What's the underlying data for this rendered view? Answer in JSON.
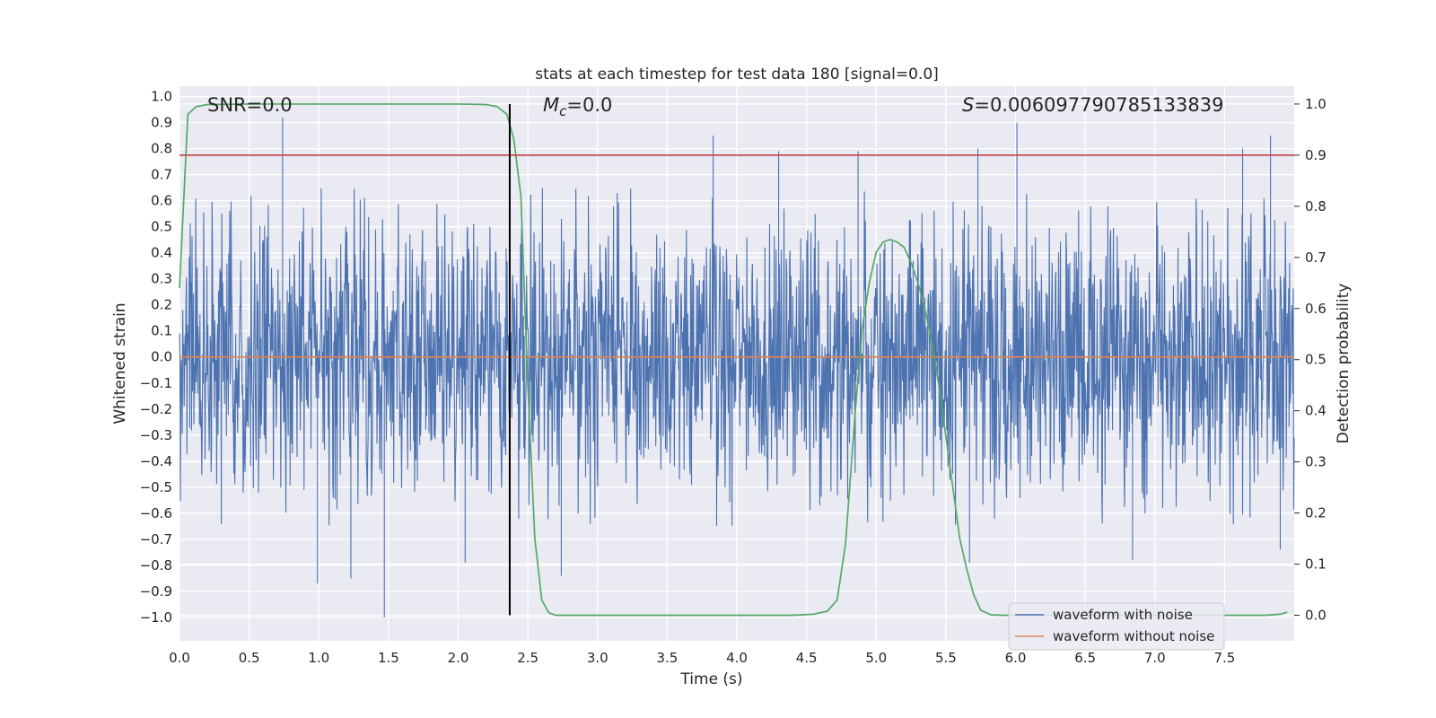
{
  "chart_data": {
    "type": "line",
    "title": "stats at each timestep for test data 180 [signal=0.0]",
    "xlabel": "Time (s)",
    "ylabel": "Whitened strain",
    "y2label": "Detection probability",
    "xlim": [
      0.0,
      8.0
    ],
    "ylim": [
      -1.09,
      1.04
    ],
    "y2lim": [
      -0.05,
      1.035
    ],
    "xticks": [
      "0.0",
      "0.5",
      "1.0",
      "1.5",
      "2.0",
      "2.5",
      "3.0",
      "3.5",
      "4.0",
      "4.5",
      "5.0",
      "5.5",
      "6.0",
      "6.5",
      "7.0",
      "7.5"
    ],
    "yticks": [
      "1.0",
      "0.9",
      "0.8",
      "0.7",
      "0.6",
      "0.5",
      "0.4",
      "0.3",
      "0.2",
      "0.1",
      "0.0",
      "−0.1",
      "−0.2",
      "−0.3",
      "−0.4",
      "−0.5",
      "−0.6",
      "−0.7",
      "−0.8",
      "−0.9",
      "−1.0"
    ],
    "y2ticks": [
      "1.0",
      "0.9",
      "0.8",
      "0.7",
      "0.6",
      "0.5",
      "0.4",
      "0.3",
      "0.2",
      "0.1",
      "0.0"
    ],
    "grid": true,
    "legend_position": "bottom-right",
    "annotations": {
      "snr": "SNR=0.0",
      "mc_symbol": "M",
      "mc_sub": "c",
      "mc_value": "=0.0",
      "s_symbol": "S",
      "s_value": "=0.006097790785133839"
    },
    "series": [
      {
        "name": "waveform with noise",
        "color": "#4c72b0",
        "axis": "left",
        "kind": "noise",
        "envelope_pos": 0.45,
        "envelope_neg": -0.5,
        "peaks": [
          {
            "x": 0.74,
            "y": 0.92
          },
          {
            "x": 3.83,
            "y": 0.85
          },
          {
            "x": 4.3,
            "y": 0.79
          },
          {
            "x": 4.87,
            "y": 0.79
          },
          {
            "x": 6.01,
            "y": 0.9
          },
          {
            "x": 7.83,
            "y": 0.85
          },
          {
            "x": 7.63,
            "y": 0.8
          },
          {
            "x": 5.73,
            "y": 0.8
          },
          {
            "x": 1.47,
            "y": -1.0
          },
          {
            "x": 0.99,
            "y": -0.87
          },
          {
            "x": 1.23,
            "y": -0.85
          },
          {
            "x": 2.74,
            "y": -0.84
          },
          {
            "x": 2.05,
            "y": -0.79
          },
          {
            "x": 5.67,
            "y": -0.79
          },
          {
            "x": 6.84,
            "y": -0.78
          },
          {
            "x": 7.9,
            "y": -0.74
          }
        ]
      },
      {
        "name": "waveform without noise",
        "color": "#dd8452",
        "axis": "left",
        "x": [
          0.0,
          8.0
        ],
        "y": [
          0.0,
          0.0
        ]
      },
      {
        "name": "",
        "color": "#55a868",
        "axis": "right",
        "x": [
          0.0,
          0.06,
          0.12,
          0.2,
          0.5,
          1.0,
          1.5,
          2.0,
          2.2,
          2.28,
          2.35,
          2.4,
          2.45,
          2.5,
          2.55,
          2.6,
          2.65,
          2.7,
          3.0,
          3.5,
          4.0,
          4.4,
          4.55,
          4.65,
          4.72,
          4.78,
          4.85,
          4.9,
          4.95,
          5.0,
          5.05,
          5.1,
          5.15,
          5.2,
          5.25,
          5.3,
          5.35,
          5.4,
          5.45,
          5.5,
          5.55,
          5.6,
          5.65,
          5.7,
          5.75,
          5.82,
          5.9,
          6.5,
          7.0,
          7.5,
          7.8,
          7.9,
          7.95
        ],
        "y": [
          0.64,
          0.98,
          0.995,
          0.999,
          1.0,
          1.0,
          1.0,
          1.0,
          0.999,
          0.995,
          0.98,
          0.93,
          0.82,
          0.45,
          0.15,
          0.03,
          0.005,
          0.0,
          0.0,
          0.0,
          0.0,
          0.0,
          0.002,
          0.008,
          0.03,
          0.14,
          0.4,
          0.56,
          0.65,
          0.71,
          0.73,
          0.735,
          0.73,
          0.72,
          0.69,
          0.65,
          0.6,
          0.53,
          0.45,
          0.35,
          0.25,
          0.15,
          0.09,
          0.04,
          0.01,
          0.001,
          0.0,
          0.0,
          0.0,
          0.0,
          0.0,
          0.002,
          0.006
        ]
      },
      {
        "name": "",
        "color": "#c44e52",
        "axis": "right",
        "x": [
          0.0,
          8.0
        ],
        "y": [
          0.9,
          0.9
        ]
      },
      {
        "name": "",
        "color": "#000000",
        "axis": "right",
        "x": [
          2.37,
          2.37
        ],
        "y": [
          0.0,
          1.0
        ]
      }
    ]
  }
}
